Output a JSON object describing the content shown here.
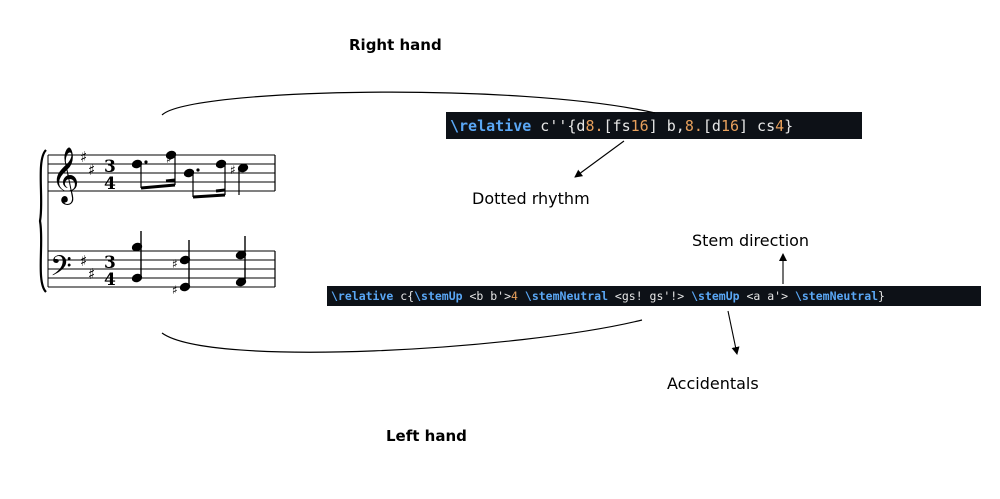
{
  "labels": {
    "right_hand": "Right hand",
    "left_hand": "Left hand",
    "dotted_rhythm": "Dotted rhythm",
    "stem_direction": "Stem direction",
    "accidentals": "Accidentals"
  },
  "code": {
    "right": [
      {
        "t": "\\relative",
        "k": "cmd"
      },
      {
        "t": " c''{d",
        "k": "txt"
      },
      {
        "t": "8.",
        "k": "num"
      },
      {
        "t": "[fs",
        "k": "txt"
      },
      {
        "t": "16",
        "k": "num"
      },
      {
        "t": "] b,",
        "k": "txt"
      },
      {
        "t": "8.",
        "k": "num"
      },
      {
        "t": "[d",
        "k": "txt"
      },
      {
        "t": "16",
        "k": "num"
      },
      {
        "t": "] cs",
        "k": "txt"
      },
      {
        "t": "4",
        "k": "num"
      },
      {
        "t": "}",
        "k": "txt"
      }
    ],
    "left": [
      {
        "t": "\\relative",
        "k": "cmd"
      },
      {
        "t": " c{",
        "k": "txt"
      },
      {
        "t": "\\stemUp",
        "k": "cmd"
      },
      {
        "t": " <b b'>",
        "k": "txt"
      },
      {
        "t": "4",
        "k": "num"
      },
      {
        "t": " ",
        "k": "txt"
      },
      {
        "t": "\\stemNeutral",
        "k": "cmd"
      },
      {
        "t": " <gs! gs'!> ",
        "k": "txt"
      },
      {
        "t": "\\stemUp",
        "k": "cmd"
      },
      {
        "t": " <a a'> ",
        "k": "txt"
      },
      {
        "t": "\\stemNeutral",
        "k": "cmd"
      },
      {
        "t": "}",
        "k": "txt"
      }
    ]
  },
  "score": {
    "time_signature": [
      "3",
      "4"
    ],
    "key_signature": "D major (2 sharps)",
    "clefs": [
      "treble",
      "bass"
    ]
  }
}
